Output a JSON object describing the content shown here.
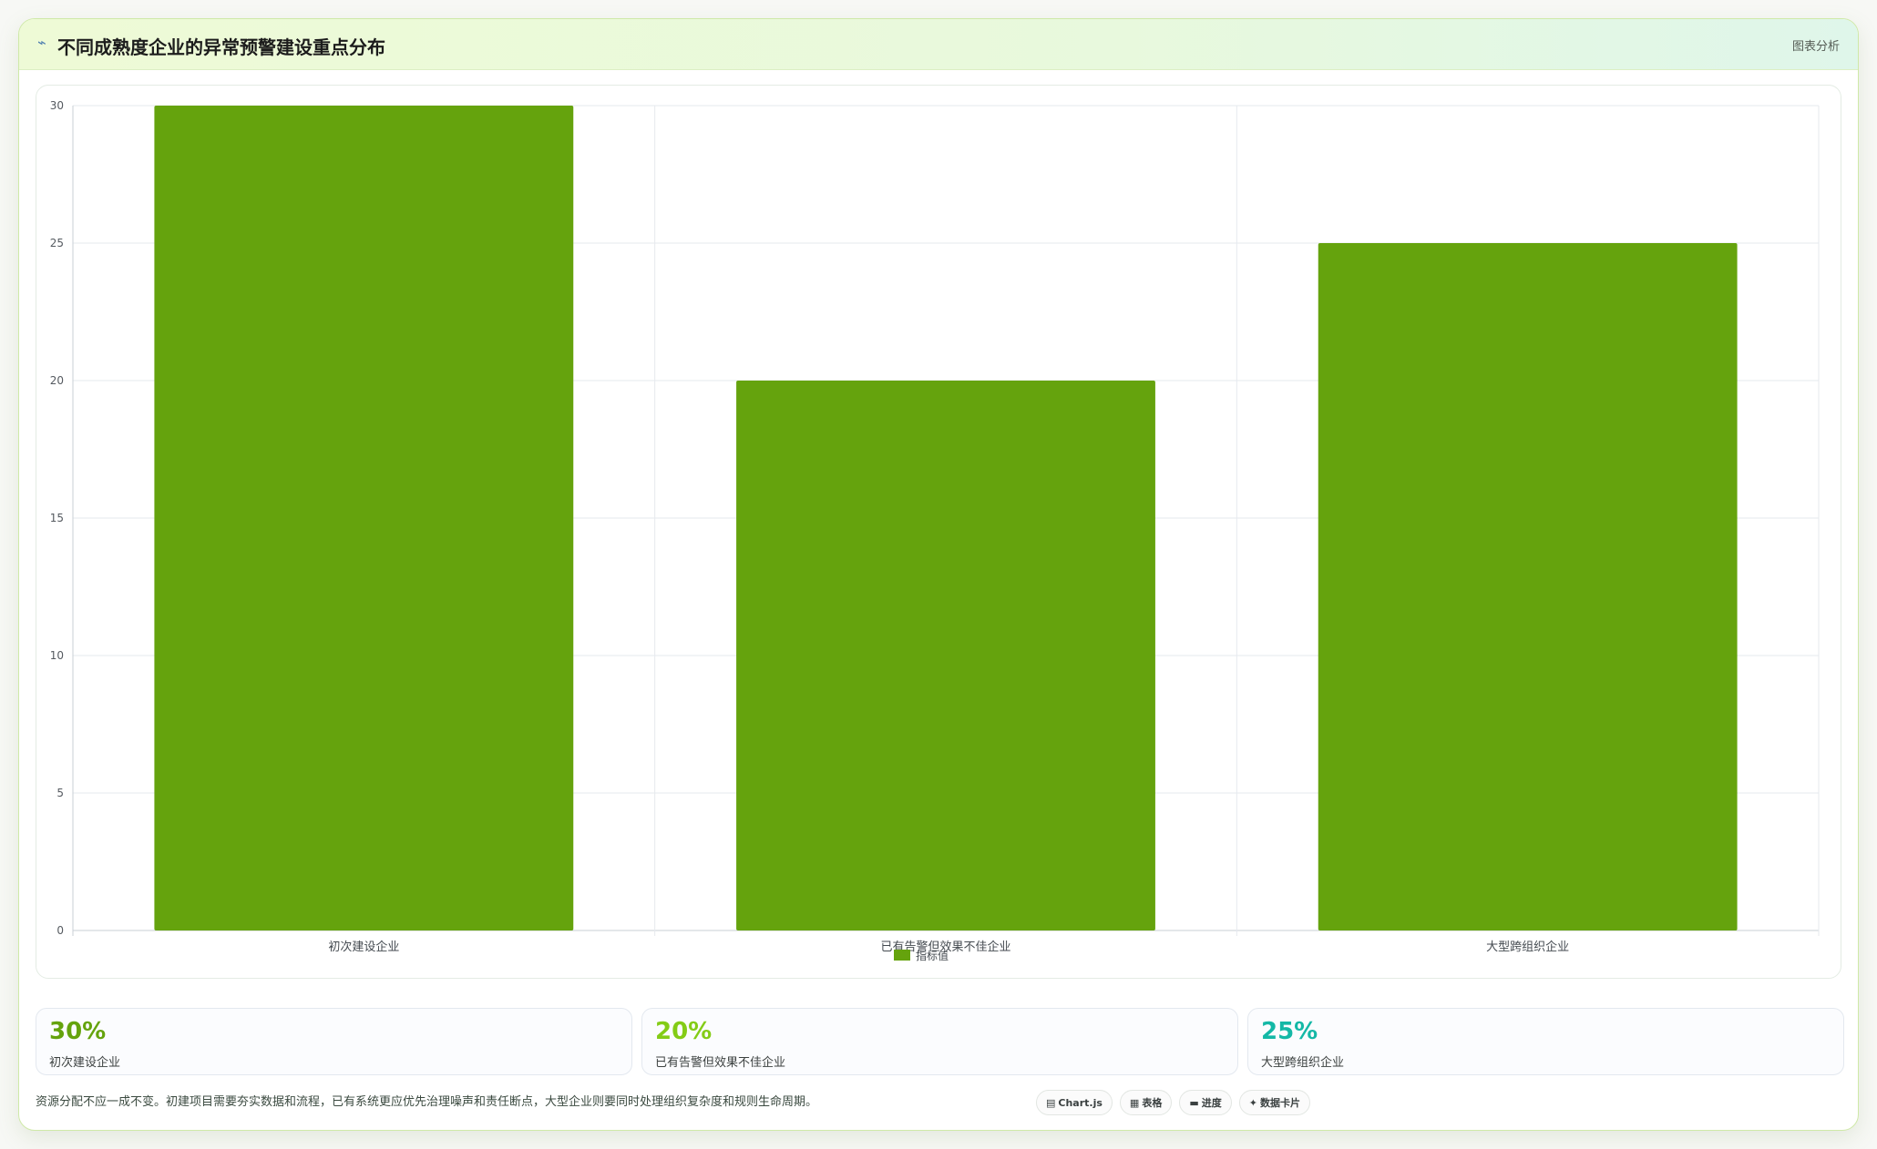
{
  "header": {
    "icon": "trend-line-icon",
    "title": "不同成熟度企业的异常预警建设重点分布",
    "right_label": "图表分析"
  },
  "chart_data": {
    "type": "bar",
    "categories": [
      "初次建设企业",
      "已有告警但效果不佳企业",
      "大型跨组织企业"
    ],
    "series": [
      {
        "name": "指标值",
        "values": [
          30,
          20,
          25
        ],
        "color": "#65a30d"
      }
    ],
    "yticks": [
      0,
      5,
      10,
      15,
      20,
      25,
      30
    ],
    "ylim": [
      0,
      30
    ],
    "grid": true,
    "legend_position": "bottom-center"
  },
  "stats": [
    {
      "value": "30%",
      "label": "初次建设企业",
      "color": "#65a30d"
    },
    {
      "value": "20%",
      "label": "已有告警但效果不佳企业",
      "color": "#84cc16"
    },
    {
      "value": "25%",
      "label": "大型跨组织企业",
      "color": "#14b8a6"
    }
  ],
  "note": "资源分配不应一成不变。初建项目需要夯实数据和流程，已有系统更应优先治理噪声和责任断点，大型企业则要同时处理组织复杂度和规则生命周期。",
  "tags": [
    {
      "icon": "chart-icon",
      "label": "Chart.js"
    },
    {
      "icon": "table-icon",
      "label": "表格"
    },
    {
      "icon": "progress-icon",
      "label": "进度"
    },
    {
      "icon": "sparkle-icon",
      "label": "数据卡片"
    }
  ]
}
